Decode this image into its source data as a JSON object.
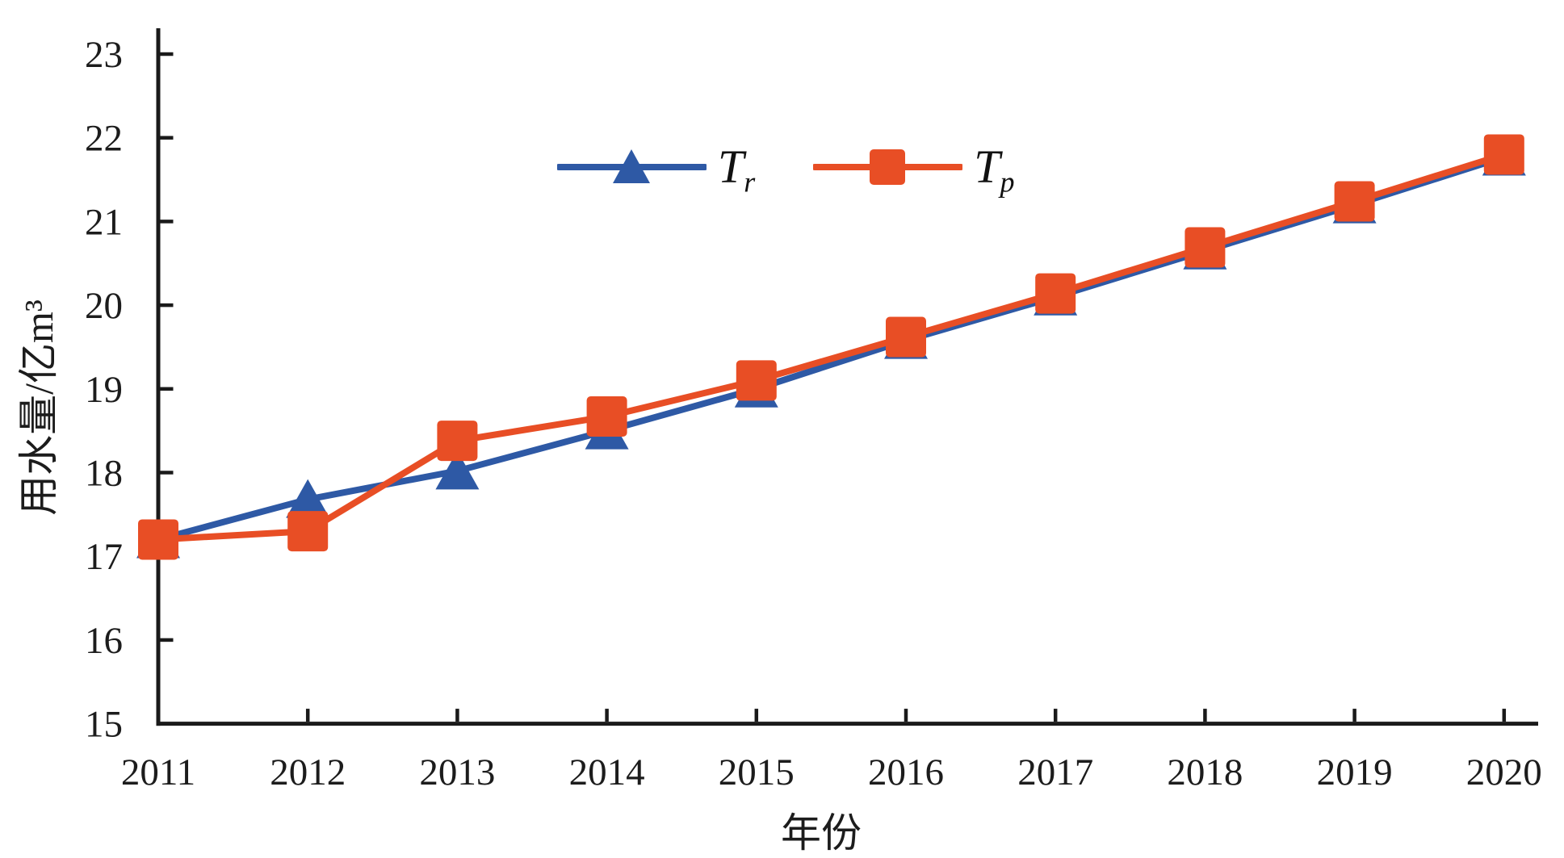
{
  "chart_data": {
    "type": "line",
    "title": "",
    "xlabel": "年份",
    "ylabel": "用水量/亿m³",
    "x": [
      2011,
      2012,
      2013,
      2014,
      2015,
      2016,
      2017,
      2018,
      2019,
      2020
    ],
    "xlim": [
      2011,
      2020.25
    ],
    "ylim": [
      15,
      23
    ],
    "yticks": [
      15,
      16,
      17,
      18,
      19,
      20,
      21,
      22,
      23
    ],
    "grid": false,
    "legend_position": "top-center",
    "axis_color": "#1a1a1a",
    "series": [
      {
        "name": "Tr",
        "label_base": "T",
        "label_sub": "r",
        "marker": "triangle",
        "color": "#2e59a5",
        "values": [
          17.2,
          17.68,
          18.02,
          18.5,
          19.0,
          19.58,
          20.1,
          20.65,
          21.2,
          21.77
        ]
      },
      {
        "name": "Tp",
        "label_base": "T",
        "label_sub": "p",
        "marker": "square",
        "color": "#e84e25",
        "values": [
          17.2,
          17.3,
          18.38,
          18.67,
          19.1,
          19.62,
          20.14,
          20.69,
          21.24,
          21.8
        ]
      }
    ]
  }
}
